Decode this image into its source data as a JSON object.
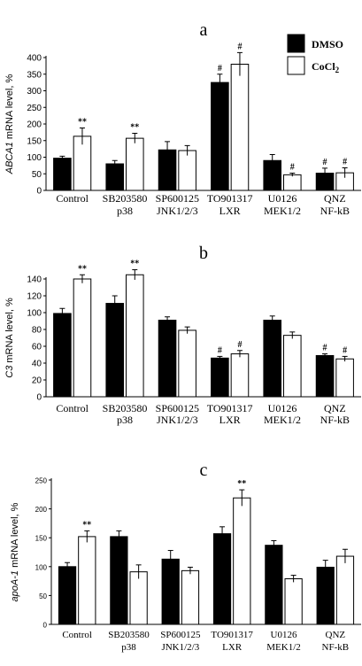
{
  "legend": [
    {
      "label": "DMSO",
      "color": "#000000"
    },
    {
      "label": "CoCl",
      "sub": "2",
      "color": "#ffffff"
    }
  ],
  "chart_data": [
    {
      "type": "bar",
      "panel": "a",
      "ylabel_italic": "ABCA1",
      "ylabel_rest": " mRNA level, %",
      "ylim": [
        0,
        400
      ],
      "yticks": [
        0,
        50,
        100,
        150,
        200,
        250,
        300,
        350,
        400
      ],
      "categories": [
        [
          "Control",
          ""
        ],
        [
          "SB203580",
          "p38"
        ],
        [
          "SP600125",
          "JNK1/2/3"
        ],
        [
          "TO901317",
          "LXR"
        ],
        [
          "U0126",
          "MEK1/2"
        ],
        [
          "QNZ",
          "NF-kB"
        ]
      ],
      "series": [
        {
          "name": "DMSO",
          "values": [
            97,
            80,
            122,
            325,
            90,
            52
          ],
          "errors": [
            6,
            10,
            25,
            25,
            18,
            15
          ],
          "labels": [
            "",
            "",
            "",
            "#",
            "",
            "#"
          ]
        },
        {
          "name": "CoCl2",
          "values": [
            163,
            157,
            120,
            380,
            47,
            53
          ],
          "errors": [
            25,
            15,
            15,
            35,
            5,
            15
          ],
          "labels": [
            "**",
            "**",
            "",
            "#",
            "#",
            "#"
          ]
        }
      ]
    },
    {
      "type": "bar",
      "panel": "b",
      "ylabel_italic": "C3",
      "ylabel_rest": " mRNA level, %",
      "ylim": [
        0,
        140
      ],
      "yticks": [
        0,
        20,
        40,
        60,
        80,
        100,
        120,
        140
      ],
      "categories": [
        [
          "Control",
          ""
        ],
        [
          "SB203580",
          "p38"
        ],
        [
          "SP600125",
          "JNK1/2/3"
        ],
        [
          "TO901317",
          "LXR"
        ],
        [
          "U0126",
          "MEK1/2"
        ],
        [
          "QNZ",
          "NF-kB"
        ]
      ],
      "series": [
        {
          "name": "DMSO",
          "values": [
            99,
            111,
            91,
            46,
            91,
            49
          ],
          "errors": [
            6,
            9,
            4,
            2,
            5,
            2
          ],
          "labels": [
            "",
            "",
            "",
            "#",
            "",
            "#"
          ]
        },
        {
          "name": "CoCl2",
          "values": [
            140,
            145,
            79,
            51,
            73,
            45
          ],
          "errors": [
            5,
            6,
            4,
            4,
            4,
            3
          ],
          "labels": [
            "**",
            "**",
            "",
            "#",
            "",
            "#"
          ]
        }
      ]
    },
    {
      "type": "bar",
      "panel": "c",
      "ylabel_italic": "apoA-1",
      "ylabel_rest": " mRNA level, %",
      "ylim": [
        0,
        250
      ],
      "yticks": [
        0,
        50,
        100,
        150,
        200,
        250
      ],
      "categories": [
        [
          "Control",
          ""
        ],
        [
          "SB203580",
          "p38"
        ],
        [
          "SP600125",
          "JNK1/2/3"
        ],
        [
          "TO901317",
          "LXR"
        ],
        [
          "U0126",
          "MEK1/2"
        ],
        [
          "QNZ",
          "NF-kB"
        ]
      ],
      "series": [
        {
          "name": "DMSO",
          "values": [
            100,
            152,
            113,
            157,
            137,
            99
          ],
          "errors": [
            7,
            10,
            15,
            12,
            8,
            12
          ],
          "labels": [
            "",
            "",
            "",
            "",
            "",
            ""
          ]
        },
        {
          "name": "CoCl2",
          "values": [
            152,
            91,
            93,
            219,
            79,
            118
          ],
          "errors": [
            10,
            12,
            6,
            14,
            6,
            12
          ],
          "labels": [
            "**",
            "",
            "",
            "**",
            "",
            ""
          ]
        }
      ]
    }
  ]
}
